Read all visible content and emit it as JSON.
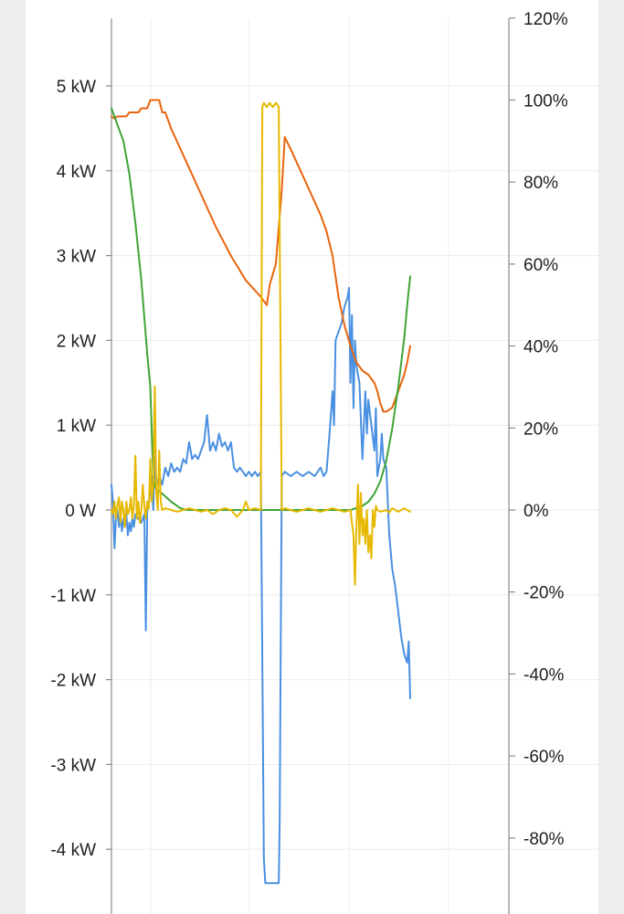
{
  "chart_data": {
    "type": "line",
    "title": "",
    "xlabel": "",
    "ylabel": "",
    "grid": true,
    "y_left": {
      "ylim": [
        -4.7,
        5.8
      ],
      "tick_values": [
        5,
        4,
        3,
        2,
        1,
        0,
        -1,
        -2,
        -3,
        -4
      ],
      "tick_labels": [
        "5 kW",
        "4 kW",
        "3 kW",
        "2 kW",
        "1 kW",
        "0 W",
        "-1 kW",
        "-2 kW",
        "-3 kW",
        "-4 kW"
      ]
    },
    "y_right": {
      "ylim": [
        -95,
        120
      ],
      "tick_values": [
        120,
        100,
        80,
        60,
        40,
        20,
        0,
        -20,
        -40,
        -60,
        -80
      ],
      "tick_labels": [
        "120%",
        "100%",
        "80%",
        "60%",
        "40%",
        "20%",
        "0%",
        "-20%",
        "-40%",
        "-60%",
        "-80%"
      ]
    },
    "xlim": [
      0,
      100
    ],
    "series": [
      {
        "color": "#4a90e2",
        "axis": "left",
        "points": [
          [
            0,
            0.3
          ],
          [
            0.5,
            0.1
          ],
          [
            1,
            -0.45
          ],
          [
            1.5,
            -0.1
          ],
          [
            2,
            0.0
          ],
          [
            2.5,
            -0.2
          ],
          [
            3,
            -0.05
          ],
          [
            3.5,
            -0.25
          ],
          [
            4,
            -0.1
          ],
          [
            4.5,
            -0.2
          ],
          [
            5,
            -0.05
          ],
          [
            5.5,
            -0.3
          ],
          [
            6,
            -0.15
          ],
          [
            6.5,
            -0.25
          ],
          [
            7,
            -0.1
          ],
          [
            7.5,
            -0.2
          ],
          [
            8,
            -0.05
          ],
          [
            9,
            -0.1
          ],
          [
            10,
            -0.15
          ],
          [
            11,
            -0.05
          ],
          [
            11.5,
            -1.42
          ],
          [
            12,
            0.0
          ],
          [
            13,
            0.2
          ],
          [
            13.5,
            0.4
          ],
          [
            14,
            0.0
          ],
          [
            14.5,
            0.7
          ],
          [
            15,
            0.3
          ],
          [
            16,
            0.4
          ],
          [
            17,
            0.3
          ],
          [
            18,
            0.5
          ],
          [
            19,
            0.4
          ],
          [
            20,
            0.55
          ],
          [
            21,
            0.45
          ],
          [
            22,
            0.5
          ],
          [
            23,
            0.45
          ],
          [
            24,
            0.6
          ],
          [
            25,
            0.55
          ],
          [
            26,
            0.8
          ],
          [
            27,
            0.6
          ],
          [
            28,
            0.65
          ],
          [
            29,
            0.6
          ],
          [
            30,
            0.7
          ],
          [
            31,
            0.8
          ],
          [
            32,
            1.12
          ],
          [
            33,
            0.7
          ],
          [
            34,
            0.8
          ],
          [
            35,
            0.7
          ],
          [
            36,
            0.9
          ],
          [
            37,
            0.75
          ],
          [
            38,
            0.8
          ],
          [
            39,
            0.7
          ],
          [
            40,
            0.8
          ],
          [
            41,
            0.5
          ],
          [
            42,
            0.45
          ],
          [
            43,
            0.5
          ],
          [
            44,
            0.45
          ],
          [
            45,
            0.4
          ],
          [
            46,
            0.45
          ],
          [
            47,
            0.4
          ],
          [
            48,
            0.45
          ],
          [
            49,
            0.4
          ],
          [
            50,
            0.45
          ],
          [
            51,
            -4.1
          ],
          [
            51.5,
            -4.4
          ],
          [
            56,
            -4.4
          ],
          [
            56.3,
            -3.7
          ],
          [
            57,
            0.4
          ],
          [
            58,
            0.45
          ],
          [
            60,
            0.4
          ],
          [
            62,
            0.45
          ],
          [
            64,
            0.4
          ],
          [
            66,
            0.45
          ],
          [
            68,
            0.4
          ],
          [
            70,
            0.5
          ],
          [
            71,
            0.4
          ],
          [
            72,
            0.45
          ],
          [
            73,
            0.9
          ],
          [
            74,
            1.4
          ],
          [
            74.5,
            1.0
          ],
          [
            75,
            2.0
          ],
          [
            76,
            2.1
          ],
          [
            77,
            2.2
          ],
          [
            78,
            2.4
          ],
          [
            79,
            2.5
          ],
          [
            79.5,
            2.62
          ],
          [
            80,
            1.5
          ],
          [
            80.5,
            2.3
          ],
          [
            81,
            1.2
          ],
          [
            81.5,
            2.0
          ],
          [
            82,
            1.7
          ],
          [
            83,
            1.5
          ],
          [
            84,
            0.6
          ],
          [
            85,
            1.4
          ],
          [
            85.5,
            0.9
          ],
          [
            86,
            1.3
          ],
          [
            87,
            1.0
          ],
          [
            88,
            0.7
          ],
          [
            88.5,
            1.2
          ],
          [
            89,
            0.4
          ],
          [
            90,
            0.6
          ],
          [
            90.5,
            0.9
          ],
          [
            91,
            0.6
          ],
          [
            92,
            0.5
          ],
          [
            93,
            -0.3
          ],
          [
            94,
            -0.7
          ],
          [
            95,
            -0.9
          ],
          [
            96,
            -1.2
          ],
          [
            97,
            -1.5
          ],
          [
            98,
            -1.7
          ],
          [
            99,
            -1.8
          ],
          [
            99.5,
            -1.55
          ],
          [
            100,
            -2.22
          ]
        ]
      },
      {
        "color": "#e8650f",
        "axis": "right",
        "points": [
          [
            0,
            96
          ],
          [
            1,
            95.5
          ],
          [
            2,
            96
          ],
          [
            5,
            96
          ],
          [
            6,
            97
          ],
          [
            9,
            97
          ],
          [
            10,
            98
          ],
          [
            12,
            98
          ],
          [
            13,
            100
          ],
          [
            16,
            100
          ],
          [
            17,
            97
          ],
          [
            18,
            97
          ],
          [
            20,
            93
          ],
          [
            25,
            85
          ],
          [
            30,
            77
          ],
          [
            35,
            69
          ],
          [
            40,
            62
          ],
          [
            45,
            56
          ],
          [
            50,
            52
          ],
          [
            52,
            50
          ],
          [
            53,
            55
          ],
          [
            55,
            60
          ],
          [
            57,
            78
          ],
          [
            58,
            91
          ],
          [
            60,
            88
          ],
          [
            65,
            80
          ],
          [
            70,
            72
          ],
          [
            72,
            68
          ],
          [
            74,
            62
          ],
          [
            76,
            52
          ],
          [
            78,
            45
          ],
          [
            80,
            40
          ],
          [
            82,
            36
          ],
          [
            84,
            34
          ],
          [
            86,
            33
          ],
          [
            88,
            31
          ],
          [
            89,
            29
          ],
          [
            90,
            26
          ],
          [
            91,
            24
          ],
          [
            92,
            24
          ],
          [
            94,
            25
          ],
          [
            96,
            29
          ],
          [
            98,
            33
          ],
          [
            99,
            36
          ],
          [
            100,
            40
          ]
        ]
      },
      {
        "color": "#3ea535",
        "axis": "right",
        "points": [
          [
            0,
            98
          ],
          [
            1,
            96
          ],
          [
            2,
            94
          ],
          [
            4,
            90
          ],
          [
            6,
            82
          ],
          [
            8,
            70
          ],
          [
            10,
            56
          ],
          [
            12,
            38
          ],
          [
            13,
            30
          ],
          [
            14,
            8
          ],
          [
            14.5,
            6
          ],
          [
            15,
            5
          ],
          [
            17,
            4
          ],
          [
            20,
            2
          ],
          [
            23,
            0.5
          ],
          [
            25,
            0
          ],
          [
            50,
            0
          ],
          [
            60,
            0
          ],
          [
            70,
            0
          ],
          [
            80,
            0
          ],
          [
            82,
            0.5
          ],
          [
            84,
            1
          ],
          [
            86,
            2
          ],
          [
            88,
            4
          ],
          [
            90,
            7
          ],
          [
            92,
            12
          ],
          [
            94,
            20
          ],
          [
            96,
            30
          ],
          [
            98,
            42
          ],
          [
            99,
            50
          ],
          [
            100,
            57
          ]
        ]
      },
      {
        "color": "#e6b800",
        "axis": "left",
        "points": [
          [
            0,
            0.0
          ],
          [
            0.5,
            -0.05
          ],
          [
            1,
            0.1
          ],
          [
            1.5,
            -0.1
          ],
          [
            2,
            0.05
          ],
          [
            2.5,
            0.15
          ],
          [
            3,
            -0.15
          ],
          [
            3.5,
            0.1
          ],
          [
            4,
            0.0
          ],
          [
            4.5,
            -0.2
          ],
          [
            5,
            0.1
          ],
          [
            5.5,
            -0.05
          ],
          [
            6,
            0.0
          ],
          [
            6.5,
            0.15
          ],
          [
            7,
            -0.1
          ],
          [
            7.5,
            0.05
          ],
          [
            8,
            0.64
          ],
          [
            8.5,
            -0.1
          ],
          [
            9,
            0.1
          ],
          [
            9.5,
            -0.15
          ],
          [
            10,
            0.0
          ],
          [
            10.5,
            0.3
          ],
          [
            11,
            0.05
          ],
          [
            11.5,
            -0.1
          ],
          [
            12,
            0.1
          ],
          [
            12.5,
            0.02
          ],
          [
            13,
            0.6
          ],
          [
            13.5,
            0.1
          ],
          [
            14,
            0.3
          ],
          [
            14.5,
            1.46
          ],
          [
            15,
            0.2
          ],
          [
            15.5,
            0.0
          ],
          [
            16,
            0.7
          ],
          [
            16.5,
            0.1
          ],
          [
            17,
            0.0
          ],
          [
            18,
            0.02
          ],
          [
            20,
            0.0
          ],
          [
            22,
            -0.02
          ],
          [
            24,
            0.0
          ],
          [
            26,
            0.02
          ],
          [
            28,
            0.0
          ],
          [
            30,
            -0.02
          ],
          [
            32,
            0.0
          ],
          [
            34,
            -0.05
          ],
          [
            36,
            0.0
          ],
          [
            38,
            0.02
          ],
          [
            40,
            0.0
          ],
          [
            42,
            -0.08
          ],
          [
            44,
            0.0
          ],
          [
            45,
            0.1
          ],
          [
            46,
            0.0
          ],
          [
            48,
            0.02
          ],
          [
            50,
            0.0
          ],
          [
            50.5,
            4.75
          ],
          [
            51,
            4.8
          ],
          [
            52,
            4.75
          ],
          [
            53,
            4.8
          ],
          [
            54,
            4.75
          ],
          [
            55,
            4.8
          ],
          [
            56,
            4.75
          ],
          [
            57,
            0.0
          ],
          [
            58,
            0.02
          ],
          [
            60,
            0.0
          ],
          [
            62,
            -0.02
          ],
          [
            64,
            0.0
          ],
          [
            66,
            0.02
          ],
          [
            68,
            0.0
          ],
          [
            70,
            -0.02
          ],
          [
            72,
            0.0
          ],
          [
            74,
            0.02
          ],
          [
            76,
            0.0
          ],
          [
            78,
            -0.02
          ],
          [
            80,
            0.0
          ],
          [
            81,
            -0.3
          ],
          [
            81.5,
            -0.88
          ],
          [
            82,
            -0.2
          ],
          [
            82.5,
            0.3
          ],
          [
            83,
            -0.4
          ],
          [
            83.5,
            0.2
          ],
          [
            84,
            -0.3
          ],
          [
            84.5,
            -0.1
          ],
          [
            85,
            -0.4
          ],
          [
            85.5,
            0.0
          ],
          [
            86,
            -0.5
          ],
          [
            86.5,
            -0.3
          ],
          [
            87,
            -0.57
          ],
          [
            87.5,
            0.0
          ],
          [
            88,
            -0.2
          ],
          [
            88.5,
            0.05
          ],
          [
            89,
            0.0
          ],
          [
            90,
            -0.02
          ],
          [
            92,
            0.0
          ],
          [
            93,
            -0.03
          ],
          [
            94,
            0.02
          ],
          [
            95,
            0.0
          ],
          [
            96,
            -0.02
          ],
          [
            97,
            0.0
          ],
          [
            98,
            0.02
          ],
          [
            99,
            0.0
          ],
          [
            100,
            -0.02
          ]
        ]
      }
    ]
  }
}
